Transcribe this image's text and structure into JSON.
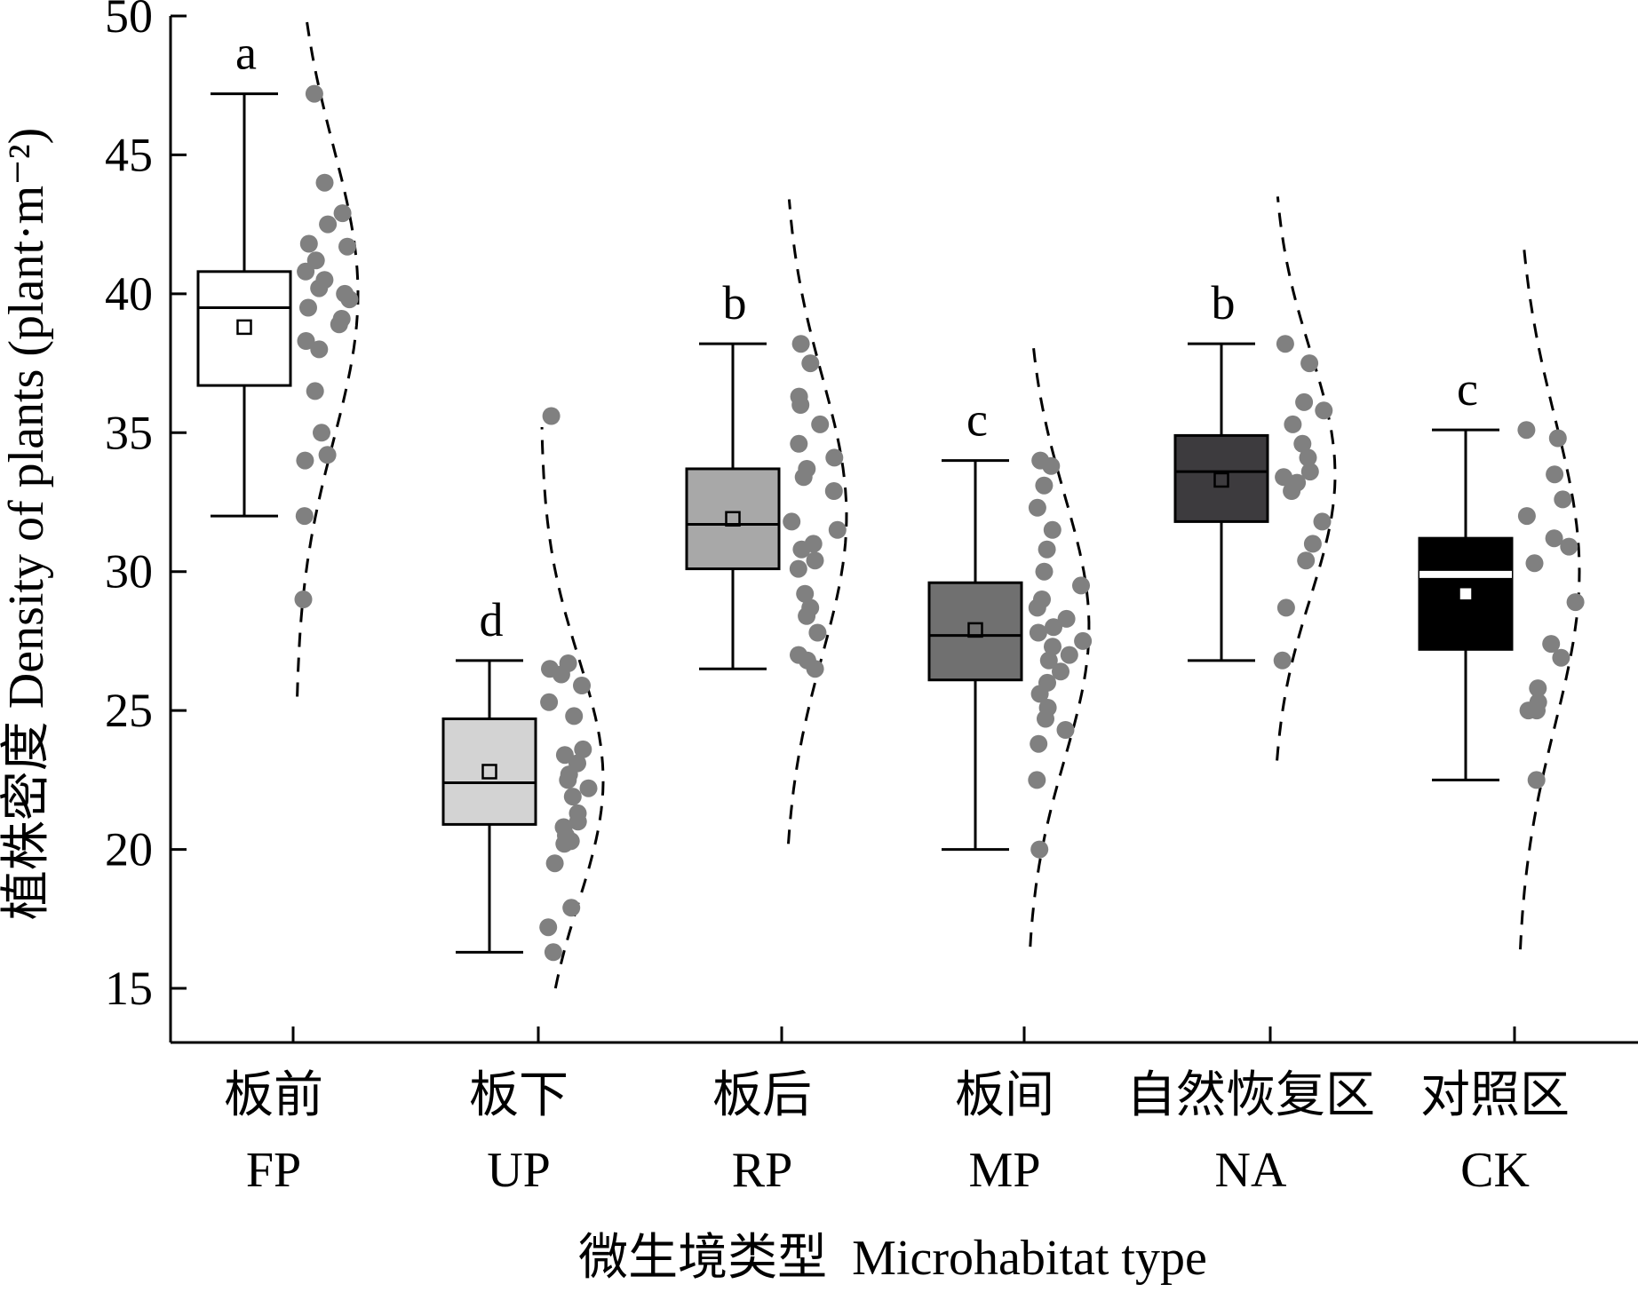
{
  "chart_data": {
    "type": "boxplot",
    "ylabel": "植株密度 Density of plants (plant·m⁻²)",
    "xlabel": "微生境类型  Microhabitat type",
    "ylim": [
      13,
      51
    ],
    "yticks": [
      15,
      20,
      25,
      30,
      35,
      40,
      45,
      50
    ],
    "categories": [
      {
        "name_cn": "板前",
        "name_en": "FP",
        "sig": "a",
        "fill": "#ffffff",
        "whisker_low": 32.0,
        "q1": 36.7,
        "median": 39.5,
        "q3": 40.8,
        "whisker_high": 47.2,
        "mean": 38.8,
        "points": [
          47.2,
          44.0,
          42.9,
          42.5,
          41.8,
          41.7,
          41.2,
          40.8,
          40.5,
          40.2,
          40.0,
          39.8,
          39.5,
          39.1,
          38.9,
          38.3,
          38.0,
          36.5,
          35.0,
          34.2,
          34.0,
          32.0,
          29.0
        ],
        "density": {
          "min": 25.5,
          "max": 49.8,
          "peak": 40.0
        }
      },
      {
        "name_cn": "板下",
        "name_en": "UP",
        "sig": "d",
        "fill": "#d3d3d3",
        "whisker_low": 16.3,
        "q1": 20.9,
        "median": 22.4,
        "q3": 24.7,
        "whisker_high": 26.8,
        "mean": 22.8,
        "points": [
          35.6,
          26.7,
          26.5,
          26.3,
          25.9,
          25.3,
          24.8,
          23.6,
          23.4,
          23.1,
          22.7,
          22.5,
          22.2,
          21.9,
          21.3,
          21.0,
          20.8,
          20.5,
          20.3,
          20.2,
          19.5,
          17.9,
          17.2,
          16.3
        ],
        "density": {
          "min": 15.0,
          "max": 35.2,
          "peak": 22.5
        }
      },
      {
        "name_cn": "板后",
        "name_en": "RP",
        "sig": "b",
        "fill": "#a8a8a8",
        "whisker_low": 26.5,
        "q1": 30.1,
        "median": 31.7,
        "q3": 33.7,
        "whisker_high": 38.2,
        "mean": 31.9,
        "points": [
          38.2,
          37.5,
          36.3,
          36.0,
          35.3,
          34.6,
          34.1,
          33.7,
          33.4,
          32.9,
          31.8,
          31.5,
          31.0,
          30.8,
          30.4,
          30.1,
          29.2,
          28.7,
          28.4,
          27.8,
          27.0,
          26.8,
          26.5
        ],
        "density": {
          "min": 20.2,
          "max": 43.4,
          "peak": 32.0
        }
      },
      {
        "name_cn": "板间",
        "name_en": "MP",
        "sig": "c",
        "fill": "#707070",
        "whisker_low": 20.0,
        "q1": 26.1,
        "median": 27.7,
        "q3": 29.6,
        "whisker_high": 34.0,
        "mean": 27.9,
        "points": [
          34.0,
          33.8,
          33.1,
          32.3,
          31.5,
          30.8,
          30.0,
          29.5,
          29.0,
          28.7,
          28.3,
          28.0,
          27.8,
          27.5,
          27.3,
          27.0,
          26.8,
          26.4,
          26.0,
          25.6,
          25.1,
          24.7,
          24.3,
          23.8,
          22.5,
          20.0
        ],
        "density": {
          "min": 16.5,
          "max": 38.4,
          "peak": 28.0
        }
      },
      {
        "name_cn": "自然恢复区",
        "name_en": "NA",
        "sig": "b",
        "fill": "#3d3b3e",
        "whisker_low": 26.8,
        "q1": 31.8,
        "median": 33.6,
        "q3": 34.9,
        "whisker_high": 38.2,
        "mean": 33.3,
        "points": [
          38.2,
          37.5,
          36.1,
          35.8,
          35.3,
          34.6,
          34.1,
          33.6,
          33.4,
          33.2,
          32.9,
          31.8,
          31.0,
          30.4,
          28.7,
          26.8
        ],
        "density": {
          "min": 23.2,
          "max": 43.5,
          "peak": 33.5
        }
      },
      {
        "name_cn": "对照区",
        "name_en": "CK",
        "sig": "c",
        "fill": "#000000",
        "whisker_low": 22.5,
        "q1": 27.2,
        "median": 29.9,
        "q3": 31.2,
        "whisker_high": 35.1,
        "mean": 29.2,
        "points": [
          35.1,
          34.8,
          33.5,
          32.6,
          32.0,
          31.2,
          30.9,
          30.3,
          28.9,
          27.4,
          26.9,
          25.8,
          25.3,
          25.0,
          25.0,
          22.5
        ],
        "density": {
          "min": 16.4,
          "max": 41.9,
          "peak": 30.0
        }
      }
    ]
  }
}
